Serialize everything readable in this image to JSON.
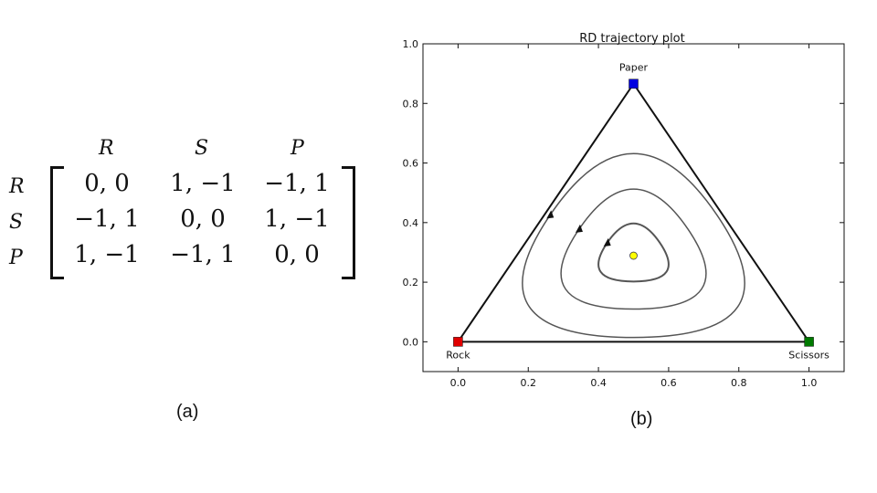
{
  "panel_a": {
    "caption": "(a)",
    "col_labels": [
      "R",
      "S",
      "P"
    ],
    "row_labels": [
      "R",
      "S",
      "P"
    ],
    "cells": [
      [
        "0, 0",
        "1, −1",
        "−1, 1"
      ],
      [
        "−1, 1",
        "0, 0",
        "1, −1"
      ],
      [
        "1, −1",
        "−1, 1",
        "0, 0"
      ]
    ]
  },
  "panel_b": {
    "caption": "(b)"
  },
  "chart_data": {
    "type": "line",
    "title": "RD trajectory plot",
    "xlim": [
      -0.1,
      1.1
    ],
    "ylim": [
      -0.1,
      1.0
    ],
    "xticks": [
      "0.0",
      "0.2",
      "0.4",
      "0.6",
      "0.8",
      "1.0"
    ],
    "yticks": [
      "0.0",
      "0.2",
      "0.4",
      "0.6",
      "0.8",
      "1.0"
    ],
    "simplex": [
      {
        "name": "Rock",
        "x": 0.0,
        "y": 0.0,
        "color": "#e00000"
      },
      {
        "name": "Scissors",
        "x": 1.0,
        "y": 0.0,
        "color": "#007a00"
      },
      {
        "name": "Paper",
        "x": 0.5,
        "y": 0.866,
        "color": "#0000e0"
      }
    ],
    "interior_point": {
      "x": 0.5,
      "y": 0.289,
      "color": "#ffff00"
    },
    "trajectories": [
      {
        "scale": 0.3
      },
      {
        "scale": 0.62
      },
      {
        "scale": 0.95
      }
    ],
    "colors": {
      "edges": "#111111",
      "trajectory": "#555555"
    }
  }
}
